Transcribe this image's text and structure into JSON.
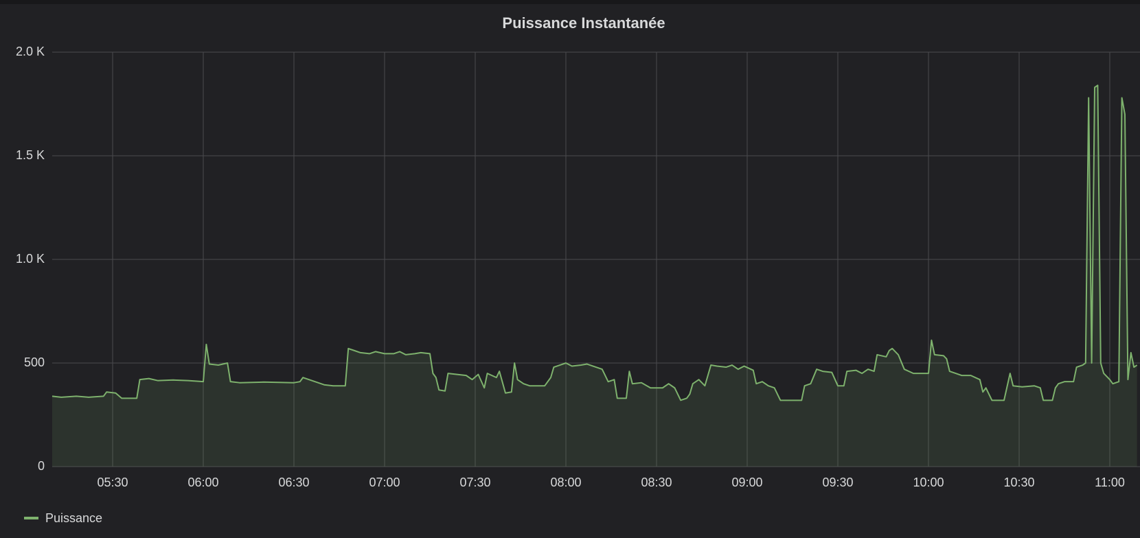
{
  "chart_data": {
    "type": "line",
    "title": "Puissance Instantanée",
    "x": [
      "05:10",
      "05:13",
      "05:18",
      "05:22",
      "05:27",
      "05:28",
      "05:31",
      "05:33",
      "05:38",
      "05:39",
      "05:42",
      "05:45",
      "05:50",
      "05:55",
      "06:00",
      "06:01",
      "06:02",
      "06:05",
      "06:08",
      "06:09",
      "06:12",
      "06:20",
      "06:30",
      "06:32",
      "06:33",
      "06:35",
      "06:37",
      "06:40",
      "06:43",
      "06:45",
      "06:47",
      "06:48",
      "06:50",
      "06:52",
      "06:55",
      "06:57",
      "07:00",
      "07:03",
      "07:05",
      "07:07",
      "07:10",
      "07:12",
      "07:15",
      "07:16",
      "07:17",
      "07:18",
      "07:20",
      "07:21",
      "07:24",
      "07:27",
      "07:29",
      "07:31",
      "07:33",
      "07:34",
      "07:37",
      "07:38",
      "07:40",
      "07:42",
      "07:43",
      "07:44",
      "07:46",
      "07:48",
      "07:52",
      "07:53",
      "07:55",
      "07:56",
      "07:58",
      "08:00",
      "08:02",
      "08:05",
      "08:07",
      "08:09",
      "08:12",
      "08:14",
      "08:16",
      "08:17",
      "08:20",
      "08:21",
      "08:22",
      "08:25",
      "08:28",
      "08:32",
      "08:34",
      "08:36",
      "08:38",
      "08:40",
      "08:41",
      "08:42",
      "08:44",
      "08:46",
      "08:48",
      "08:50",
      "08:53",
      "08:55",
      "08:57",
      "08:59",
      "09:02",
      "09:03",
      "09:05",
      "09:07",
      "09:09",
      "09:11",
      "09:15",
      "09:18",
      "09:19",
      "09:21",
      "09:23",
      "09:25",
      "09:28",
      "09:30",
      "09:32",
      "09:33",
      "09:36",
      "09:38",
      "09:40",
      "09:42",
      "09:43",
      "09:46",
      "09:47",
      "09:48",
      "09:50",
      "09:52",
      "09:55",
      "09:58",
      "10:00",
      "10:01",
      "10:02",
      "10:05",
      "10:06",
      "10:07",
      "10:09",
      "10:11",
      "10:14",
      "10:17",
      "10:18",
      "10:19",
      "10:21",
      "10:25",
      "10:27",
      "10:28",
      "10:31",
      "10:35",
      "10:37",
      "10:38",
      "10:41",
      "10:42",
      "10:43",
      "10:45",
      "10:48",
      "10:49",
      "10:51",
      "10:52",
      "10:53",
      "10:54",
      "10:55",
      "10:56",
      "10:57",
      "10:58",
      "11:00",
      "11:01",
      "11:03",
      "11:04",
      "11:05",
      "11:06",
      "11:07",
      "11:08",
      "11:09"
    ],
    "series": [
      {
        "name": "Puissance",
        "color": "#7eb26d",
        "values": [
          340,
          335,
          340,
          335,
          340,
          360,
          355,
          330,
          330,
          420,
          425,
          415,
          418,
          415,
          410,
          590,
          495,
          490,
          500,
          410,
          405,
          408,
          405,
          410,
          430,
          420,
          410,
          395,
          390,
          390,
          390,
          570,
          560,
          550,
          545,
          555,
          545,
          545,
          555,
          540,
          545,
          550,
          545,
          450,
          430,
          370,
          365,
          450,
          445,
          440,
          420,
          445,
          380,
          450,
          430,
          460,
          355,
          360,
          500,
          420,
          400,
          390,
          390,
          390,
          430,
          480,
          490,
          500,
          485,
          490,
          495,
          485,
          470,
          410,
          420,
          330,
          330,
          460,
          400,
          405,
          380,
          380,
          400,
          380,
          320,
          330,
          350,
          400,
          420,
          390,
          490,
          485,
          480,
          490,
          470,
          485,
          465,
          400,
          410,
          390,
          380,
          320,
          320,
          320,
          390,
          400,
          470,
          460,
          455,
          390,
          390,
          460,
          465,
          450,
          470,
          460,
          540,
          530,
          560,
          570,
          540,
          470,
          450,
          450,
          450,
          610,
          540,
          535,
          520,
          460,
          450,
          440,
          440,
          420,
          360,
          380,
          320,
          320,
          450,
          390,
          385,
          390,
          380,
          320,
          320,
          380,
          400,
          410,
          410,
          480,
          490,
          500,
          1780,
          500,
          1830,
          1840,
          500,
          450,
          420,
          400,
          410,
          1780,
          1700,
          420,
          550,
          480,
          490
        ]
      }
    ],
    "xlim": [
      "05:10",
      "11:10"
    ],
    "xticks": [
      "05:30",
      "06:00",
      "06:30",
      "07:00",
      "07:30",
      "08:00",
      "08:30",
      "09:00",
      "09:30",
      "10:00",
      "10:30",
      "11:00"
    ],
    "ylim": [
      0,
      2000
    ],
    "yticks": [
      0,
      500,
      {
        "value": 1000,
        "label": "1.0 K"
      },
      {
        "value": 1500,
        "label": "1.5 K"
      },
      {
        "value": 2000,
        "label": "2.0 K"
      }
    ],
    "grid": true,
    "legend": "bottom-left"
  }
}
